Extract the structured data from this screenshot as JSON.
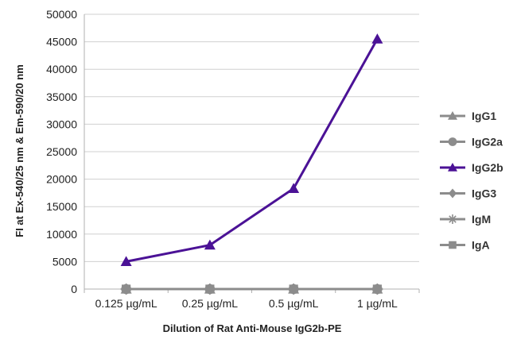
{
  "chart_data": {
    "type": "line",
    "title": "",
    "xlabel": "Dilution of Rat Anti-Mouse IgG2b-PE",
    "ylabel": "FI at Ex-540/25 nm & Em-590/20 nm",
    "categories": [
      "0.125 µg/mL",
      "0.25 µg/mL",
      "0.5 µg/mL",
      "1 µg/mL"
    ],
    "ylim": [
      0,
      50000
    ],
    "yticks": [
      0,
      5000,
      10000,
      15000,
      20000,
      25000,
      30000,
      35000,
      40000,
      45000,
      50000
    ],
    "grid": "horizontal",
    "legend_position": "right",
    "series": [
      {
        "name": "IgG1",
        "marker": "triangle",
        "color": "#8c8c8c",
        "values": [
          0,
          0,
          0,
          0
        ]
      },
      {
        "name": "IgG2a",
        "marker": "circle",
        "color": "#8c8c8c",
        "values": [
          0,
          0,
          0,
          0
        ]
      },
      {
        "name": "IgG2b",
        "marker": "triangle",
        "color": "#4b1296",
        "values": [
          5000,
          8000,
          18300,
          45500
        ]
      },
      {
        "name": "IgG3",
        "marker": "diamond",
        "color": "#8c8c8c",
        "values": [
          0,
          0,
          0,
          0
        ]
      },
      {
        "name": "IgM",
        "marker": "star",
        "color": "#8c8c8c",
        "values": [
          0,
          0,
          0,
          0
        ]
      },
      {
        "name": "IgA",
        "marker": "square",
        "color": "#8c8c8c",
        "values": [
          0,
          0,
          0,
          0
        ]
      }
    ]
  }
}
